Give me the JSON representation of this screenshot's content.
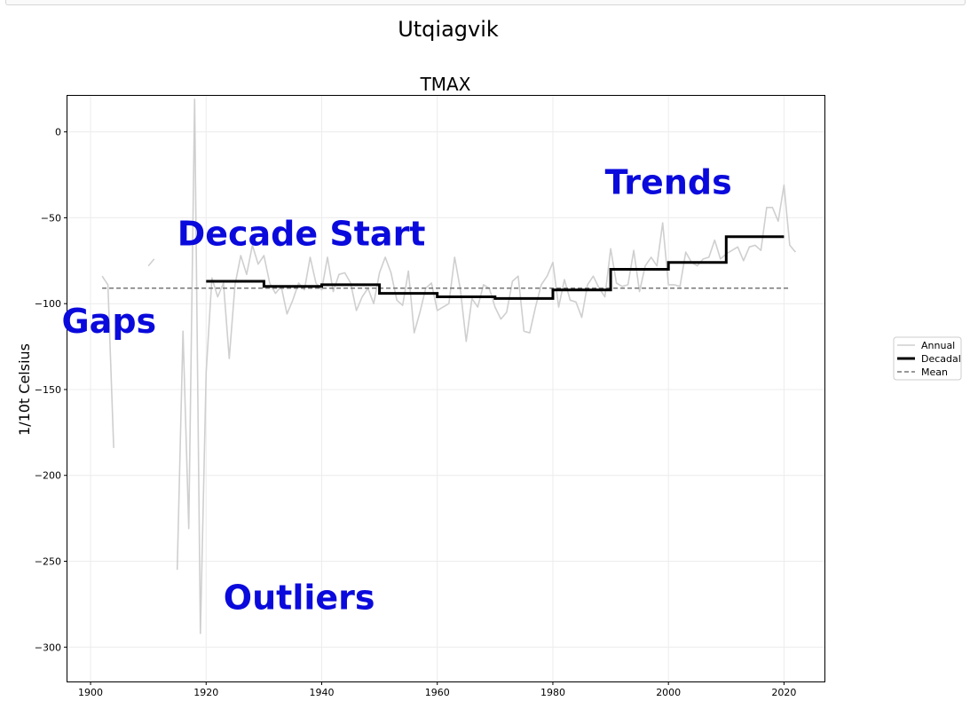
{
  "figure": {
    "suptitle": "Utqiagvik"
  },
  "colors": {
    "annual": "#cfcfcf",
    "decadal": "#000000",
    "mean": "#777777",
    "annotation": "#0a0adc",
    "grid": "#ececec"
  },
  "chart_data": {
    "type": "line",
    "title": "TMAX",
    "xlabel": "",
    "ylabel": "1/10t Celsius",
    "xlim": [
      1896,
      2027
    ],
    "ylim": [
      -320,
      21
    ],
    "xticks": [
      1900,
      1920,
      1940,
      1960,
      1980,
      2000,
      2020
    ],
    "yticks": [
      0,
      -50,
      -100,
      -150,
      -200,
      -250,
      -300
    ],
    "grid": true,
    "legend_position": "right",
    "legend": [
      "Annual",
      "Decadal",
      "Mean"
    ],
    "series": [
      {
        "name": "Annual",
        "style": "line",
        "segments": [
          [
            [
              1902,
              -84
            ],
            [
              1903,
              -89
            ],
            [
              1904,
              -184
            ]
          ],
          [
            [
              1910,
              -78
            ],
            [
              1911,
              -74
            ]
          ],
          [
            [
              1915,
              -255
            ],
            [
              1916,
              -116
            ],
            [
              1917,
              -231
            ],
            [
              1918,
              19
            ],
            [
              1919,
              -292
            ],
            [
              1920,
              -140
            ],
            [
              1921,
              -85
            ],
            [
              1922,
              -96
            ],
            [
              1923,
              -88
            ],
            [
              1924,
              -132
            ],
            [
              1925,
              -89
            ],
            [
              1926,
              -72
            ],
            [
              1927,
              -83
            ],
            [
              1928,
              -66
            ],
            [
              1929,
              -77
            ],
            [
              1930,
              -72
            ],
            [
              1931,
              -88
            ],
            [
              1932,
              -94
            ],
            [
              1933,
              -90
            ],
            [
              1934,
              -106
            ],
            [
              1935,
              -98
            ],
            [
              1936,
              -88
            ],
            [
              1937,
              -92
            ],
            [
              1938,
              -73
            ],
            [
              1939,
              -88
            ],
            [
              1940,
              -92
            ],
            [
              1941,
              -73
            ],
            [
              1942,
              -93
            ],
            [
              1943,
              -83
            ],
            [
              1944,
              -82
            ],
            [
              1945,
              -88
            ],
            [
              1946,
              -104
            ],
            [
              1947,
              -96
            ],
            [
              1948,
              -91
            ],
            [
              1949,
              -100
            ],
            [
              1950,
              -82
            ],
            [
              1951,
              -73
            ],
            [
              1952,
              -82
            ],
            [
              1953,
              -98
            ],
            [
              1954,
              -101
            ],
            [
              1955,
              -81
            ],
            [
              1956,
              -117
            ],
            [
              1957,
              -105
            ],
            [
              1958,
              -91
            ],
            [
              1959,
              -88
            ],
            [
              1960,
              -104
            ],
            [
              1961,
              -102
            ],
            [
              1962,
              -100
            ],
            [
              1963,
              -73
            ],
            [
              1964,
              -92
            ],
            [
              1965,
              -122
            ],
            [
              1966,
              -97
            ],
            [
              1967,
              -102
            ],
            [
              1968,
              -89
            ],
            [
              1969,
              -91
            ],
            [
              1970,
              -102
            ],
            [
              1971,
              -109
            ],
            [
              1972,
              -105
            ],
            [
              1973,
              -87
            ],
            [
              1974,
              -84
            ],
            [
              1975,
              -116
            ],
            [
              1976,
              -117
            ],
            [
              1977,
              -102
            ],
            [
              1978,
              -89
            ],
            [
              1979,
              -84
            ],
            [
              1980,
              -76
            ],
            [
              1981,
              -102
            ],
            [
              1982,
              -86
            ],
            [
              1983,
              -98
            ],
            [
              1984,
              -99
            ],
            [
              1985,
              -108
            ],
            [
              1986,
              -89
            ],
            [
              1987,
              -84
            ],
            [
              1988,
              -91
            ],
            [
              1989,
              -96
            ],
            [
              1990,
              -68
            ],
            [
              1991,
              -88
            ],
            [
              1992,
              -90
            ],
            [
              1993,
              -89
            ],
            [
              1994,
              -69
            ],
            [
              1995,
              -93
            ],
            [
              1996,
              -78
            ],
            [
              1997,
              -73
            ],
            [
              1998,
              -78
            ],
            [
              1999,
              -53
            ],
            [
              2000,
              -89
            ],
            [
              2001,
              -89
            ],
            [
              2002,
              -90
            ],
            [
              2003,
              -70
            ],
            [
              2004,
              -76
            ],
            [
              2005,
              -78
            ],
            [
              2006,
              -74
            ],
            [
              2007,
              -73
            ],
            [
              2008,
              -63
            ],
            [
              2009,
              -74
            ],
            [
              2010,
              -71
            ],
            [
              2011,
              -69
            ],
            [
              2012,
              -67
            ],
            [
              2013,
              -75
            ],
            [
              2014,
              -67
            ],
            [
              2015,
              -66
            ],
            [
              2016,
              -69
            ],
            [
              2017,
              -44
            ],
            [
              2018,
              -44
            ],
            [
              2019,
              -52
            ],
            [
              2020,
              -31
            ],
            [
              2021,
              -66
            ],
            [
              2022,
              -70
            ]
          ]
        ]
      },
      {
        "name": "Decadal",
        "style": "step",
        "steps": [
          {
            "from": 1920,
            "to": 1930,
            "value": -87
          },
          {
            "from": 1930,
            "to": 1940,
            "value": -90
          },
          {
            "from": 1940,
            "to": 1950,
            "value": -89
          },
          {
            "from": 1950,
            "to": 1960,
            "value": -94
          },
          {
            "from": 1960,
            "to": 1970,
            "value": -96
          },
          {
            "from": 1970,
            "to": 1980,
            "value": -97
          },
          {
            "from": 1980,
            "to": 1990,
            "value": -92
          },
          {
            "from": 1990,
            "to": 2000,
            "value": -80
          },
          {
            "from": 2000,
            "to": 2010,
            "value": -76
          },
          {
            "from": 2010,
            "to": 2020,
            "value": -61
          }
        ]
      },
      {
        "name": "Mean",
        "style": "dashed",
        "from": 1902,
        "to": 2021,
        "value": -91
      }
    ],
    "annotations": [
      {
        "text": "Gaps",
        "x": 1895,
        "y": -117
      },
      {
        "text": "Decade Start",
        "x": 1915,
        "y": -66
      },
      {
        "text": "Outliers",
        "x": 1923,
        "y": -278
      },
      {
        "text": "Trends",
        "x": 1989,
        "y": -36
      }
    ]
  }
}
